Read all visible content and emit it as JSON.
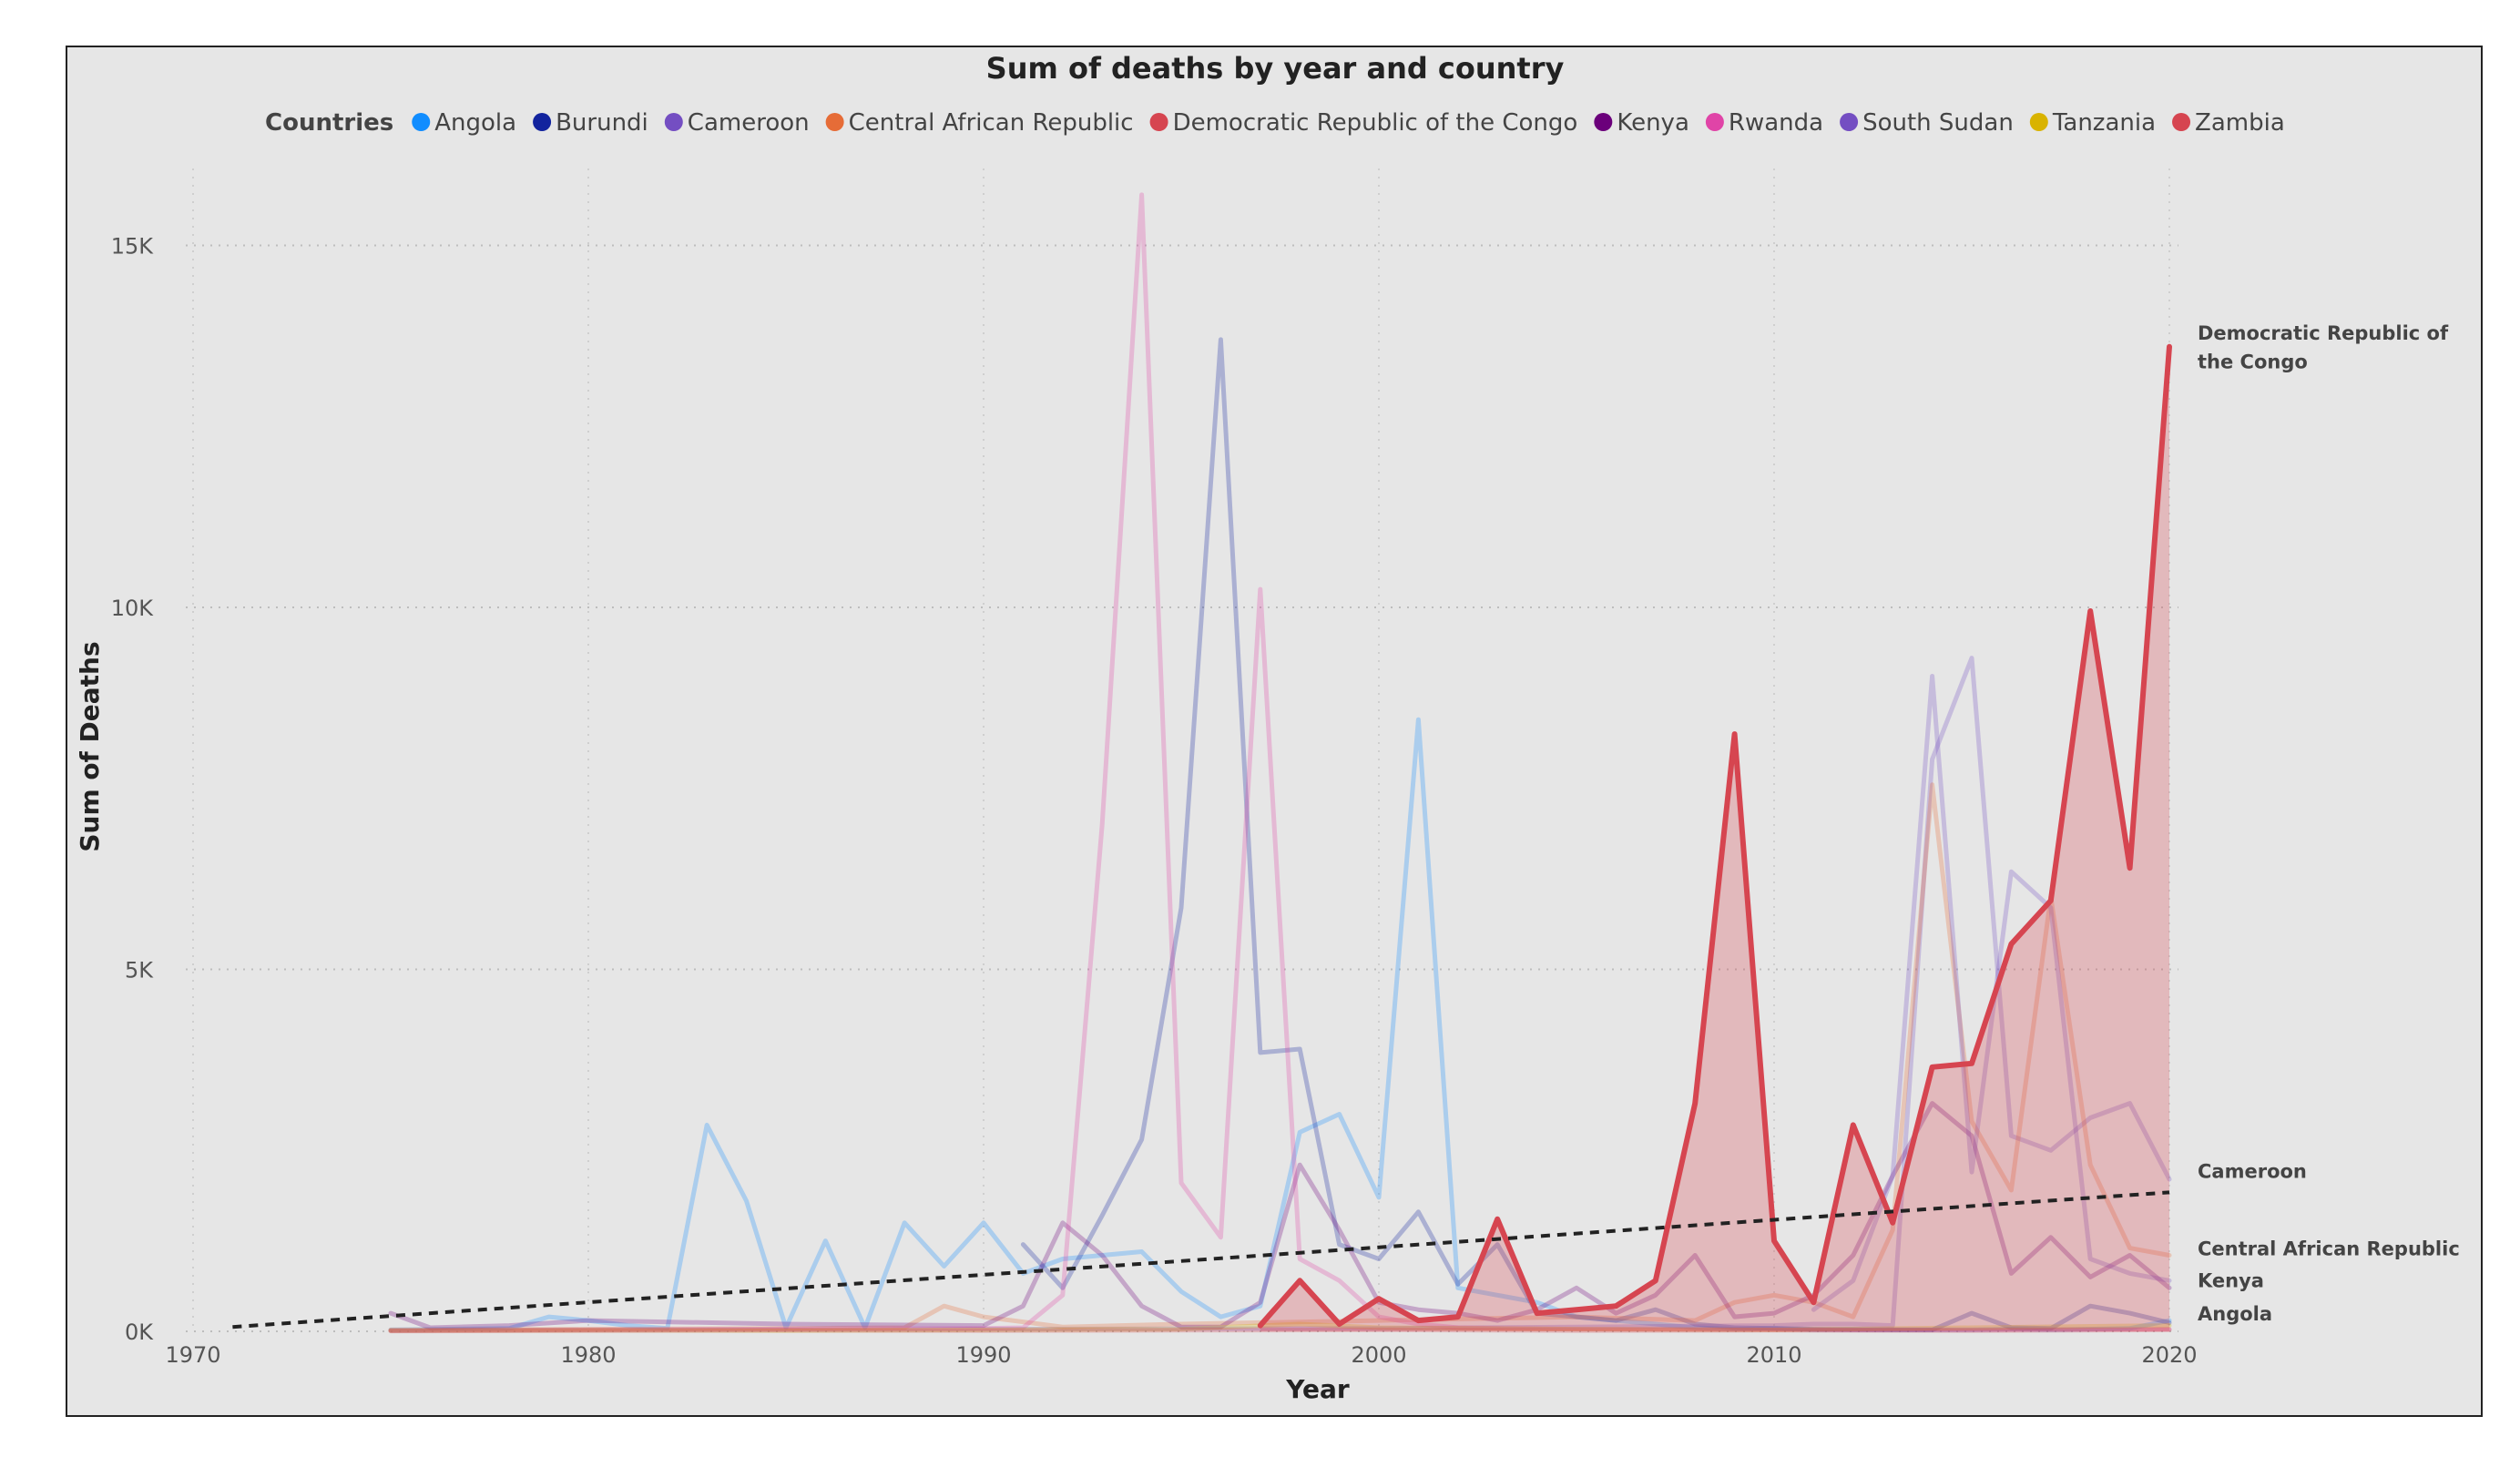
{
  "chart_data": {
    "type": "line",
    "title": "Sum of deaths by year and country",
    "xlabel": "Year",
    "ylabel": "Sum of Deaths",
    "xlim": [
      1970,
      2020
    ],
    "ylim": [
      0,
      16000
    ],
    "x_ticks": [
      {
        "value": 1970,
        "label": "1970"
      },
      {
        "value": 1980,
        "label": "1980"
      },
      {
        "value": 1990,
        "label": "1990"
      },
      {
        "value": 2000,
        "label": "2000"
      },
      {
        "value": 2010,
        "label": "2010"
      },
      {
        "value": 2020,
        "label": "2020"
      }
    ],
    "y_ticks": [
      {
        "value": 0,
        "label": "0K"
      },
      {
        "value": 5000,
        "label": "5K"
      },
      {
        "value": 10000,
        "label": "10K"
      },
      {
        "value": 15000,
        "label": "15K"
      }
    ],
    "grid": true,
    "legend": {
      "title": "Countries",
      "placement": "top"
    },
    "highlighted_series": "Democratic Republic of the Congo",
    "trend_line": {
      "style": "dashed",
      "color": "#222222",
      "from": {
        "x": 1971,
        "y": 60
      },
      "to": {
        "x": 2020,
        "y": 1920
      }
    },
    "end_labels": [
      {
        "text": "Democratic Republic of",
        "y": 13700
      },
      {
        "text": "the Congo",
        "y": 13300
      },
      {
        "text": "Cameroon",
        "y": 2120
      },
      {
        "text": "Central African Republic",
        "y": 1050
      },
      {
        "text": "Kenya",
        "y": 610
      },
      {
        "text": "Angola",
        "y": 150
      }
    ],
    "series": [
      {
        "name": "Angola",
        "color": "#118DFF",
        "points": [
          [
            1975,
            20
          ],
          [
            1978,
            40
          ],
          [
            1979,
            200
          ],
          [
            1980,
            150
          ],
          [
            1981,
            80
          ],
          [
            1982,
            40
          ],
          [
            1983,
            2850
          ],
          [
            1984,
            1800
          ],
          [
            1985,
            50
          ],
          [
            1986,
            1250
          ],
          [
            1987,
            50
          ],
          [
            1988,
            1500
          ],
          [
            1989,
            900
          ],
          [
            1990,
            1500
          ],
          [
            1991,
            800
          ],
          [
            1992,
            1000
          ],
          [
            1993,
            1050
          ],
          [
            1994,
            1100
          ],
          [
            1995,
            550
          ],
          [
            1996,
            200
          ],
          [
            1997,
            350
          ],
          [
            1998,
            2750
          ],
          [
            1999,
            3000
          ],
          [
            2000,
            1850
          ],
          [
            2001,
            8450
          ],
          [
            2002,
            600
          ],
          [
            2003,
            500
          ],
          [
            2004,
            400
          ],
          [
            2005,
            200
          ],
          [
            2006,
            150
          ],
          [
            2007,
            100
          ],
          [
            2008,
            50
          ],
          [
            2009,
            30
          ],
          [
            2010,
            40
          ],
          [
            2011,
            20
          ],
          [
            2012,
            30
          ],
          [
            2013,
            20
          ],
          [
            2014,
            20
          ],
          [
            2015,
            20
          ],
          [
            2016,
            30
          ],
          [
            2017,
            20
          ],
          [
            2018,
            30
          ],
          [
            2019,
            40
          ],
          [
            2020,
            150
          ]
        ]
      },
      {
        "name": "Burundi",
        "color": "#12239E",
        "points": [
          [
            1991,
            1200
          ],
          [
            1992,
            600
          ],
          [
            1993,
            1600
          ],
          [
            1994,
            2650
          ],
          [
            1995,
            5850
          ],
          [
            1996,
            13700
          ],
          [
            1997,
            3850
          ],
          [
            1998,
            3900
          ],
          [
            1999,
            1200
          ],
          [
            2000,
            1000
          ],
          [
            2001,
            1650
          ],
          [
            2002,
            650
          ],
          [
            2003,
            1200
          ],
          [
            2004,
            250
          ],
          [
            2005,
            200
          ],
          [
            2006,
            150
          ],
          [
            2007,
            300
          ],
          [
            2008,
            100
          ],
          [
            2009,
            50
          ],
          [
            2010,
            40
          ],
          [
            2011,
            30
          ],
          [
            2012,
            20
          ],
          [
            2013,
            20
          ],
          [
            2014,
            20
          ],
          [
            2015,
            250
          ],
          [
            2016,
            50
          ],
          [
            2017,
            40
          ],
          [
            2018,
            350
          ],
          [
            2019,
            250
          ],
          [
            2020,
            120
          ]
        ]
      },
      {
        "name": "Cameroon",
        "color": "#744EC2",
        "points": [
          [
            1975,
            10
          ],
          [
            1980,
            20
          ],
          [
            1990,
            30
          ],
          [
            2000,
            40
          ],
          [
            2005,
            60
          ],
          [
            2010,
            80
          ],
          [
            2011,
            100
          ],
          [
            2012,
            100
          ],
          [
            2013,
            80
          ],
          [
            2014,
            7900
          ],
          [
            2015,
            9300
          ],
          [
            2016,
            2700
          ],
          [
            2017,
            2500
          ],
          [
            2018,
            2950
          ],
          [
            2019,
            3150
          ],
          [
            2020,
            2100
          ]
        ]
      },
      {
        "name": "Central African Republic",
        "color": "#E66C37",
        "points": [
          [
            1975,
            20
          ],
          [
            1980,
            30
          ],
          [
            1985,
            40
          ],
          [
            1988,
            50
          ],
          [
            1989,
            350
          ],
          [
            1990,
            200
          ],
          [
            1992,
            60
          ],
          [
            1995,
            100
          ],
          [
            2000,
            150
          ],
          [
            2005,
            200
          ],
          [
            2008,
            150
          ],
          [
            2009,
            400
          ],
          [
            2010,
            500
          ],
          [
            2011,
            400
          ],
          [
            2012,
            200
          ],
          [
            2013,
            1400
          ],
          [
            2014,
            7550
          ],
          [
            2015,
            2900
          ],
          [
            2016,
            1950
          ],
          [
            2017,
            6000
          ],
          [
            2018,
            2300
          ],
          [
            2019,
            1150
          ],
          [
            2020,
            1050
          ]
        ]
      },
      {
        "name": "Democratic Republic of the Congo",
        "color": "#D64550",
        "points": [
          [
            1997,
            80
          ],
          [
            1998,
            700
          ],
          [
            1999,
            100
          ],
          [
            2000,
            450
          ],
          [
            2001,
            150
          ],
          [
            2002,
            200
          ],
          [
            2003,
            1550
          ],
          [
            2004,
            250
          ],
          [
            2005,
            300
          ],
          [
            2006,
            350
          ],
          [
            2007,
            700
          ],
          [
            2008,
            3150
          ],
          [
            2009,
            8250
          ],
          [
            2010,
            1250
          ],
          [
            2011,
            400
          ],
          [
            2012,
            2850
          ],
          [
            2013,
            1500
          ],
          [
            2014,
            3650
          ],
          [
            2015,
            3700
          ],
          [
            2016,
            5350
          ],
          [
            2017,
            5950
          ],
          [
            2018,
            9950
          ],
          [
            2019,
            6400
          ],
          [
            2020,
            13600
          ]
        ]
      },
      {
        "name": "Kenya",
        "color": "#6B007B",
        "points": [
          [
            1975,
            250
          ],
          [
            1976,
            50
          ],
          [
            1978,
            80
          ],
          [
            1980,
            150
          ],
          [
            1985,
            100
          ],
          [
            1990,
            80
          ],
          [
            1991,
            350
          ],
          [
            1992,
            1500
          ],
          [
            1993,
            1050
          ],
          [
            1994,
            350
          ],
          [
            1995,
            60
          ],
          [
            1996,
            60
          ],
          [
            1997,
            400
          ],
          [
            1998,
            2300
          ],
          [
            1999,
            1400
          ],
          [
            2000,
            400
          ],
          [
            2001,
            300
          ],
          [
            2002,
            250
          ],
          [
            2003,
            150
          ],
          [
            2004,
            300
          ],
          [
            2005,
            600
          ],
          [
            2006,
            250
          ],
          [
            2007,
            500
          ],
          [
            2008,
            1050
          ],
          [
            2009,
            200
          ],
          [
            2010,
            250
          ],
          [
            2011,
            500
          ],
          [
            2012,
            1050
          ],
          [
            2013,
            2150
          ],
          [
            2014,
            3150
          ],
          [
            2015,
            2700
          ],
          [
            2016,
            800
          ],
          [
            2017,
            1300
          ],
          [
            2018,
            750
          ],
          [
            2019,
            1050
          ],
          [
            2020,
            600
          ]
        ]
      },
      {
        "name": "Rwanda",
        "color": "#E044A7",
        "points": [
          [
            1975,
            10
          ],
          [
            1980,
            20
          ],
          [
            1985,
            30
          ],
          [
            1990,
            40
          ],
          [
            1991,
            50
          ],
          [
            1992,
            500
          ],
          [
            1993,
            7000
          ],
          [
            1994,
            15700
          ],
          [
            1995,
            2050
          ],
          [
            1996,
            1300
          ],
          [
            1997,
            10250
          ],
          [
            1998,
            1000
          ],
          [
            1999,
            700
          ],
          [
            2000,
            200
          ],
          [
            2001,
            100
          ],
          [
            2002,
            50
          ],
          [
            2003,
            40
          ],
          [
            2005,
            30
          ],
          [
            2010,
            20
          ],
          [
            2015,
            20
          ],
          [
            2020,
            30
          ]
        ]
      },
      {
        "name": "South Sudan",
        "color": "#744EC2",
        "points": [
          [
            2011,
            300
          ],
          [
            2012,
            700
          ],
          [
            2013,
            2150
          ],
          [
            2014,
            9050
          ],
          [
            2015,
            2200
          ],
          [
            2016,
            6350
          ],
          [
            2017,
            5850
          ],
          [
            2018,
            1000
          ],
          [
            2019,
            800
          ],
          [
            2020,
            700
          ]
        ]
      },
      {
        "name": "Tanzania",
        "color": "#D9B300",
        "points": [
          [
            1975,
            10
          ],
          [
            1980,
            15
          ],
          [
            1985,
            10
          ],
          [
            1990,
            20
          ],
          [
            1995,
            30
          ],
          [
            1998,
            100
          ],
          [
            2000,
            50
          ],
          [
            2005,
            30
          ],
          [
            2010,
            20
          ],
          [
            2015,
            50
          ],
          [
            2020,
            80
          ]
        ]
      },
      {
        "name": "Zambia",
        "color": "#D64550",
        "points": [
          [
            1975,
            5
          ],
          [
            1980,
            10
          ],
          [
            1985,
            15
          ],
          [
            1990,
            10
          ],
          [
            1995,
            15
          ],
          [
            2000,
            20
          ],
          [
            2005,
            10
          ],
          [
            2010,
            15
          ],
          [
            2015,
            10
          ],
          [
            2020,
            20
          ]
        ]
      }
    ]
  }
}
